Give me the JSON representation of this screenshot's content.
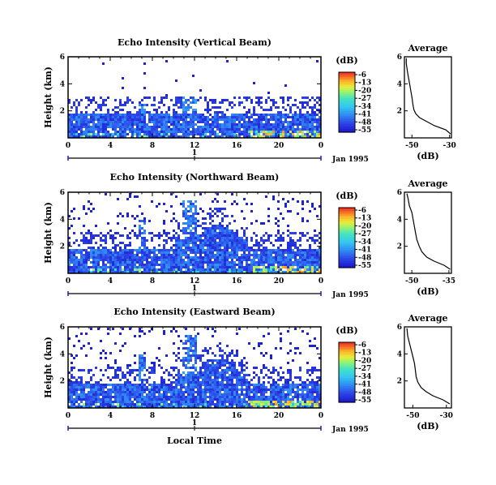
{
  "chart_data": [
    {
      "type": "heatmap",
      "title": "Echo Intensity (Vertical Beam)",
      "ylabel": "Height (km)",
      "xlim": [
        0,
        24
      ],
      "ylim": [
        0,
        6
      ],
      "x_ticks": [
        "0",
        "4",
        "8",
        "12",
        "16",
        "20",
        "0"
      ],
      "y_ticks": [
        "2",
        "4",
        "6"
      ],
      "date_axis": {
        "label": "Jan 1995",
        "ticks": [
          "1"
        ]
      },
      "colorbar": {
        "unit": "(dB)",
        "ticks": [
          "-6",
          "-13",
          "-20",
          "-27",
          "-34",
          "-41",
          "-48",
          "-55"
        ]
      },
      "profile": {
        "title": "Average",
        "xlabel": "(dB)",
        "x_ticks": [
          "-50",
          "-30"
        ],
        "xlim": [
          -54,
          -29
        ],
        "y_ticks": [
          "2",
          "4",
          "6"
        ],
        "points": [
          [
            -29.5,
            0.3
          ],
          [
            -32,
            0.6
          ],
          [
            -38,
            0.9
          ],
          [
            -42,
            1.2
          ],
          [
            -46,
            1.5
          ],
          [
            -48,
            1.8
          ],
          [
            -49,
            2.1
          ],
          [
            -49.5,
            2.5
          ],
          [
            -50,
            3.0
          ],
          [
            -50.5,
            3.4
          ],
          [
            -51,
            3.8
          ],
          [
            -51.5,
            4.2
          ],
          [
            -52,
            4.6
          ],
          [
            -52.5,
            5.0
          ],
          [
            -53,
            5.5
          ],
          [
            -53,
            5.9
          ]
        ]
      }
    },
    {
      "type": "heatmap",
      "title": "Echo Intensity (Northward Beam)",
      "ylabel": "Height (km)",
      "xlim": [
        0,
        24
      ],
      "ylim": [
        0,
        6
      ],
      "x_ticks": [
        "0",
        "4",
        "8",
        "12",
        "16",
        "20",
        "0"
      ],
      "y_ticks": [
        "2",
        "4",
        "6"
      ],
      "date_axis": {
        "label": "Jan 1995",
        "ticks": [
          "1"
        ]
      },
      "colorbar": {
        "unit": "(dB)",
        "ticks": [
          "-6",
          "-13",
          "-20",
          "-27",
          "-34",
          "-41",
          "-48",
          "-55"
        ]
      },
      "profile": {
        "title": "Average",
        "xlabel": "(dB)",
        "x_ticks": [
          "-50",
          "-35"
        ],
        "xlim": [
          -53,
          -34
        ],
        "y_ticks": [
          "2",
          "4",
          "6"
        ],
        "points": [
          [
            -34.5,
            0.3
          ],
          [
            -37,
            0.6
          ],
          [
            -41,
            0.9
          ],
          [
            -44,
            1.2
          ],
          [
            -46,
            1.6
          ],
          [
            -47,
            2.0
          ],
          [
            -48,
            2.5
          ],
          [
            -48.5,
            3.0
          ],
          [
            -49,
            3.5
          ],
          [
            -49.5,
            4.0
          ],
          [
            -50,
            4.5
          ],
          [
            -51,
            5.0
          ],
          [
            -51.5,
            5.5
          ],
          [
            -52,
            5.9
          ]
        ]
      }
    },
    {
      "type": "heatmap",
      "title": "Echo Intensity (Eastward Beam)",
      "ylabel": "Height (km)",
      "xlabel": "Local Time",
      "xlim": [
        0,
        24
      ],
      "ylim": [
        0,
        6
      ],
      "x_ticks": [
        "0",
        "4",
        "8",
        "12",
        "16",
        "20",
        "0"
      ],
      "y_ticks": [
        "2",
        "4",
        "6"
      ],
      "date_axis": {
        "label": "Jan 1995",
        "ticks": [
          "1"
        ]
      },
      "colorbar": {
        "unit": "(dB)",
        "ticks": [
          "-6",
          "-13",
          "-20",
          "-27",
          "-34",
          "-41",
          "-48",
          "-55"
        ]
      },
      "profile": {
        "title": "Average",
        "xlabel": "(dB)",
        "x_ticks": [
          "-50",
          "-30"
        ],
        "xlim": [
          -55,
          -27
        ],
        "y_ticks": [
          "2",
          "4",
          "6"
        ],
        "points": [
          [
            -28,
            0.3
          ],
          [
            -32,
            0.6
          ],
          [
            -38,
            0.9
          ],
          [
            -42,
            1.2
          ],
          [
            -45,
            1.5
          ],
          [
            -47,
            1.9
          ],
          [
            -48,
            2.3
          ],
          [
            -48.5,
            2.8
          ],
          [
            -49,
            3.3
          ],
          [
            -50,
            3.8
          ],
          [
            -51,
            4.3
          ],
          [
            -52,
            4.8
          ],
          [
            -53,
            5.3
          ],
          [
            -53.5,
            5.9
          ]
        ]
      }
    }
  ]
}
